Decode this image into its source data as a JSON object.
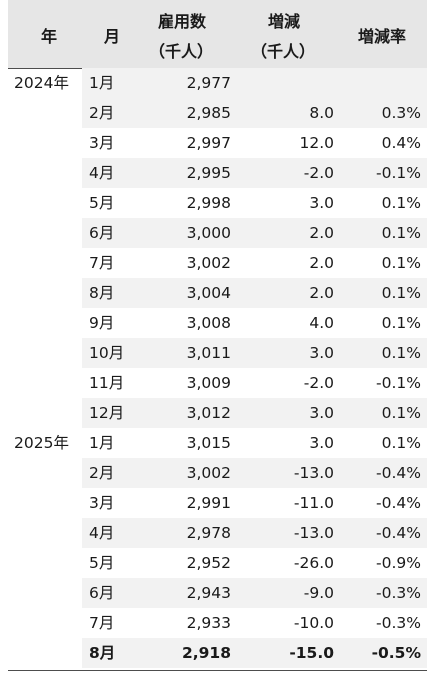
{
  "headers": {
    "year": "年",
    "month": "月",
    "employment_line1": "雇用数",
    "employment_line2": "（千人）",
    "change_line1": "増減",
    "change_line2": "（千人）",
    "rate": "増減率"
  },
  "rows": [
    {
      "year": "2024年",
      "month": "1月",
      "employment": "2,977",
      "change": "",
      "rate": ""
    },
    {
      "year": "",
      "month": "2月",
      "employment": "2,985",
      "change": "8.0",
      "rate": "0.3%"
    },
    {
      "year": "",
      "month": "3月",
      "employment": "2,997",
      "change": "12.0",
      "rate": "0.4%"
    },
    {
      "year": "",
      "month": "4月",
      "employment": "2,995",
      "change": "-2.0",
      "rate": "-0.1%"
    },
    {
      "year": "",
      "month": "5月",
      "employment": "2,998",
      "change": "3.0",
      "rate": "0.1%"
    },
    {
      "year": "",
      "month": "6月",
      "employment": "3,000",
      "change": "2.0",
      "rate": "0.1%"
    },
    {
      "year": "",
      "month": "7月",
      "employment": "3,002",
      "change": "2.0",
      "rate": "0.1%"
    },
    {
      "year": "",
      "month": "8月",
      "employment": "3,004",
      "change": "2.0",
      "rate": "0.1%"
    },
    {
      "year": "",
      "month": "9月",
      "employment": "3,008",
      "change": "4.0",
      "rate": "0.1%"
    },
    {
      "year": "",
      "month": "10月",
      "employment": "3,011",
      "change": "3.0",
      "rate": "0.1%"
    },
    {
      "year": "",
      "month": "11月",
      "employment": "3,009",
      "change": "-2.0",
      "rate": "-0.1%"
    },
    {
      "year": "",
      "month": "12月",
      "employment": "3,012",
      "change": "3.0",
      "rate": "0.1%"
    },
    {
      "year": "2025年",
      "month": "1月",
      "employment": "3,015",
      "change": "3.0",
      "rate": "0.1%"
    },
    {
      "year": "",
      "month": "2月",
      "employment": "3,002",
      "change": "-13.0",
      "rate": "-0.4%"
    },
    {
      "year": "",
      "month": "3月",
      "employment": "2,991",
      "change": "-11.0",
      "rate": "-0.4%"
    },
    {
      "year": "",
      "month": "4月",
      "employment": "2,978",
      "change": "-13.0",
      "rate": "-0.4%"
    },
    {
      "year": "",
      "month": "5月",
      "employment": "2,952",
      "change": "-26.0",
      "rate": "-0.9%"
    },
    {
      "year": "",
      "month": "6月",
      "employment": "2,943",
      "change": "-9.0",
      "rate": "-0.3%"
    },
    {
      "year": "",
      "month": "7月",
      "employment": "2,933",
      "change": "-10.0",
      "rate": "-0.3%"
    },
    {
      "year": "",
      "month": "8月",
      "employment": "2,918",
      "change": "-15.0",
      "rate": "-0.5%"
    }
  ]
}
